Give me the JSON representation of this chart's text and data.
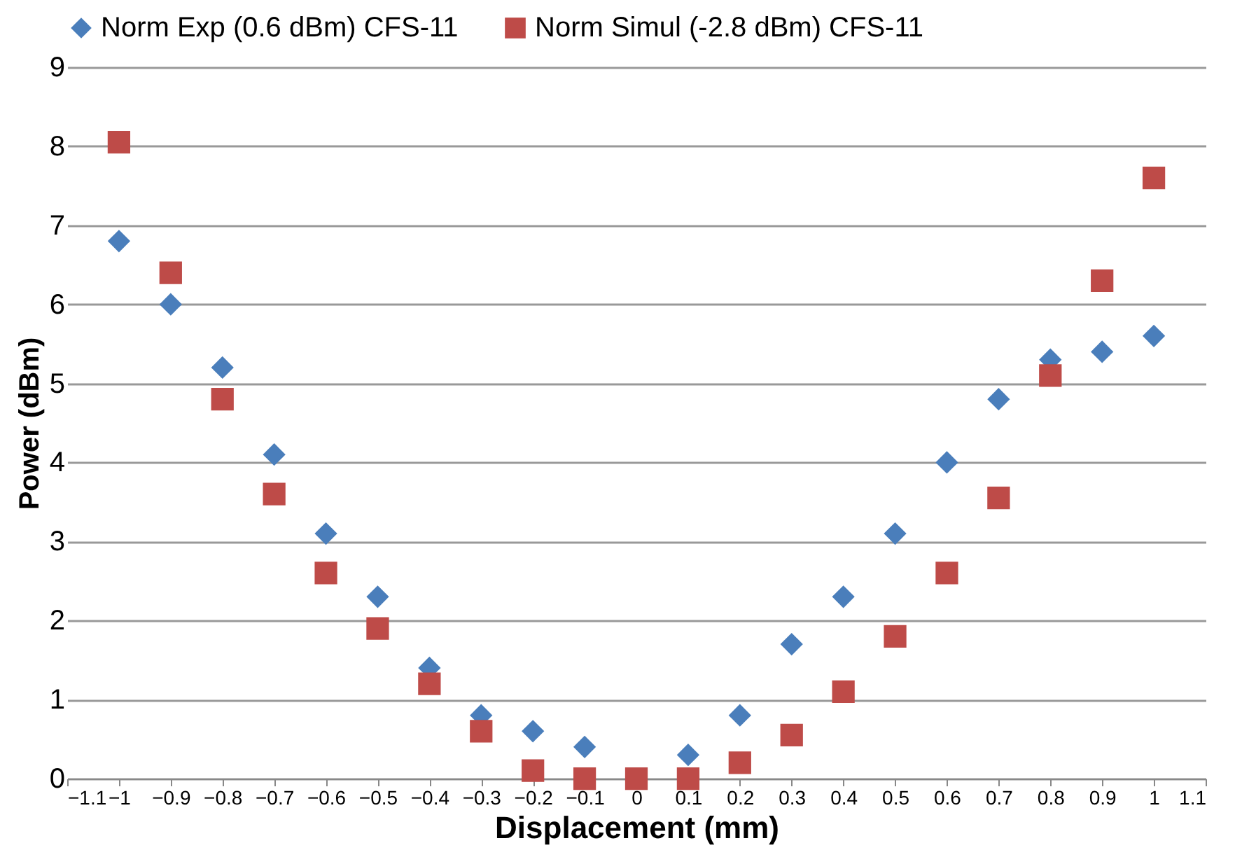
{
  "chart_data": {
    "type": "scatter",
    "xlabel": "Displacement (mm)",
    "ylabel": "Power (dBm)",
    "x": [
      -1,
      -0.9,
      -0.8,
      -0.7,
      -0.6,
      -0.5,
      -0.4,
      -0.3,
      -0.2,
      -0.1,
      0,
      0.1,
      0.2,
      0.3,
      0.4,
      0.5,
      0.6,
      0.7,
      0.8,
      0.9,
      1
    ],
    "series": [
      {
        "name": "Norm Exp (0.6 dBm) CFS-11",
        "color": "#4a7ebb",
        "marker": "diamond",
        "values": [
          6.8,
          6.0,
          5.2,
          4.1,
          3.1,
          2.3,
          1.4,
          0.8,
          0.6,
          0.4,
          null,
          0.3,
          0.8,
          1.7,
          2.3,
          3.1,
          4.0,
          4.8,
          5.3,
          5.4,
          5.6
        ]
      },
      {
        "name": "Norm Simul (-2.8 dBm) CFS-11",
        "color": "#be4b48",
        "marker": "square",
        "values": [
          8.05,
          6.4,
          4.8,
          3.6,
          2.6,
          1.9,
          1.2,
          0.6,
          0.1,
          0,
          0,
          0,
          0.2,
          0.55,
          1.1,
          1.8,
          2.6,
          3.55,
          5.1,
          6.3,
          7.6
        ]
      }
    ],
    "xlim": [
      -1.1,
      1.1
    ],
    "xticks": [
      -1.1,
      -1,
      -0.9,
      -0.8,
      -0.7,
      -0.6,
      -0.5,
      -0.4,
      -0.3,
      -0.2,
      -0.1,
      0,
      0.1,
      0.2,
      0.3,
      0.4,
      0.5,
      0.6,
      0.7,
      0.8,
      0.9,
      1,
      1.1
    ],
    "ylim": [
      0,
      9
    ],
    "yticks": [
      0,
      1,
      2,
      3,
      4,
      5,
      6,
      7,
      8,
      9
    ],
    "grid": "y",
    "legend": "top"
  }
}
